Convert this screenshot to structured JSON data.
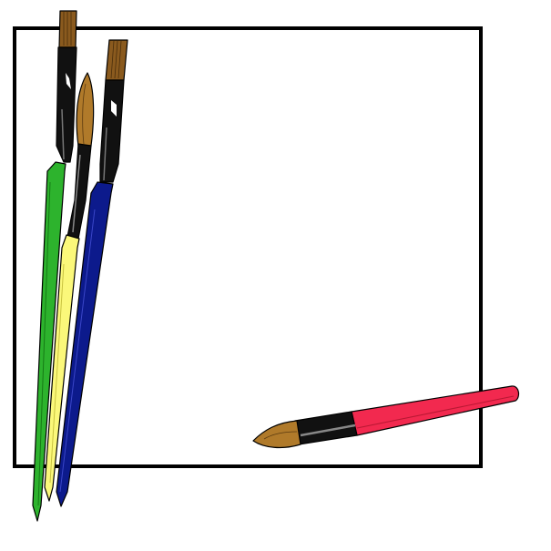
{
  "scene": {
    "frame": {
      "stroke": "#000000",
      "fill": "#ffffff"
    },
    "brushes": {
      "green_flat": {
        "handle": "#2db32d",
        "ferrule": "#111111",
        "bristles": "#8a5a1e"
      },
      "yellow_round": {
        "handle": "#fbf87a",
        "ferrule": "#111111",
        "bristles": "#b07a2a"
      },
      "blue_flat": {
        "handle": "#0c1a8c",
        "ferrule": "#111111",
        "bristles": "#8a5a1e"
      },
      "red_round": {
        "handle": "#f2294f",
        "ferrule": "#111111",
        "bristles": "#b07a2a"
      }
    }
  }
}
